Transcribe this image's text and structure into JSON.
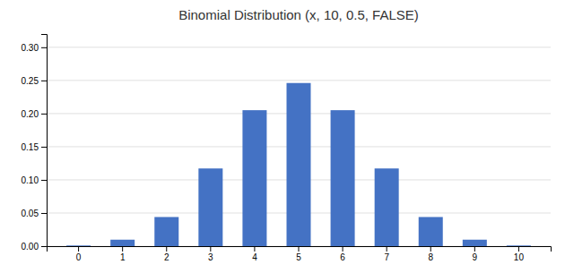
{
  "chart_data": {
    "type": "bar",
    "title": "Binomial Distribution (x, 10, 0.5, FALSE)",
    "categories": [
      0,
      1,
      2,
      3,
      4,
      5,
      6,
      7,
      8,
      9,
      10
    ],
    "values": [
      0.0009765625,
      0.009765625,
      0.0439453125,
      0.1171875,
      0.205078125,
      0.24609375,
      0.205078125,
      0.1171875,
      0.0439453125,
      0.009765625,
      0.0009765625
    ],
    "color": "#4472C4",
    "ylim": [
      0,
      0.32
    ],
    "yticks": [
      {
        "value": 0,
        "label": "0.00"
      },
      0.05,
      {
        "value": 0.1,
        "label": "0.10"
      },
      0.15,
      {
        "value": 0.2,
        "label": "0.20"
      },
      0.25,
      {
        "value": 0.3,
        "label": "0.30"
      }
    ],
    "grid": true
  }
}
